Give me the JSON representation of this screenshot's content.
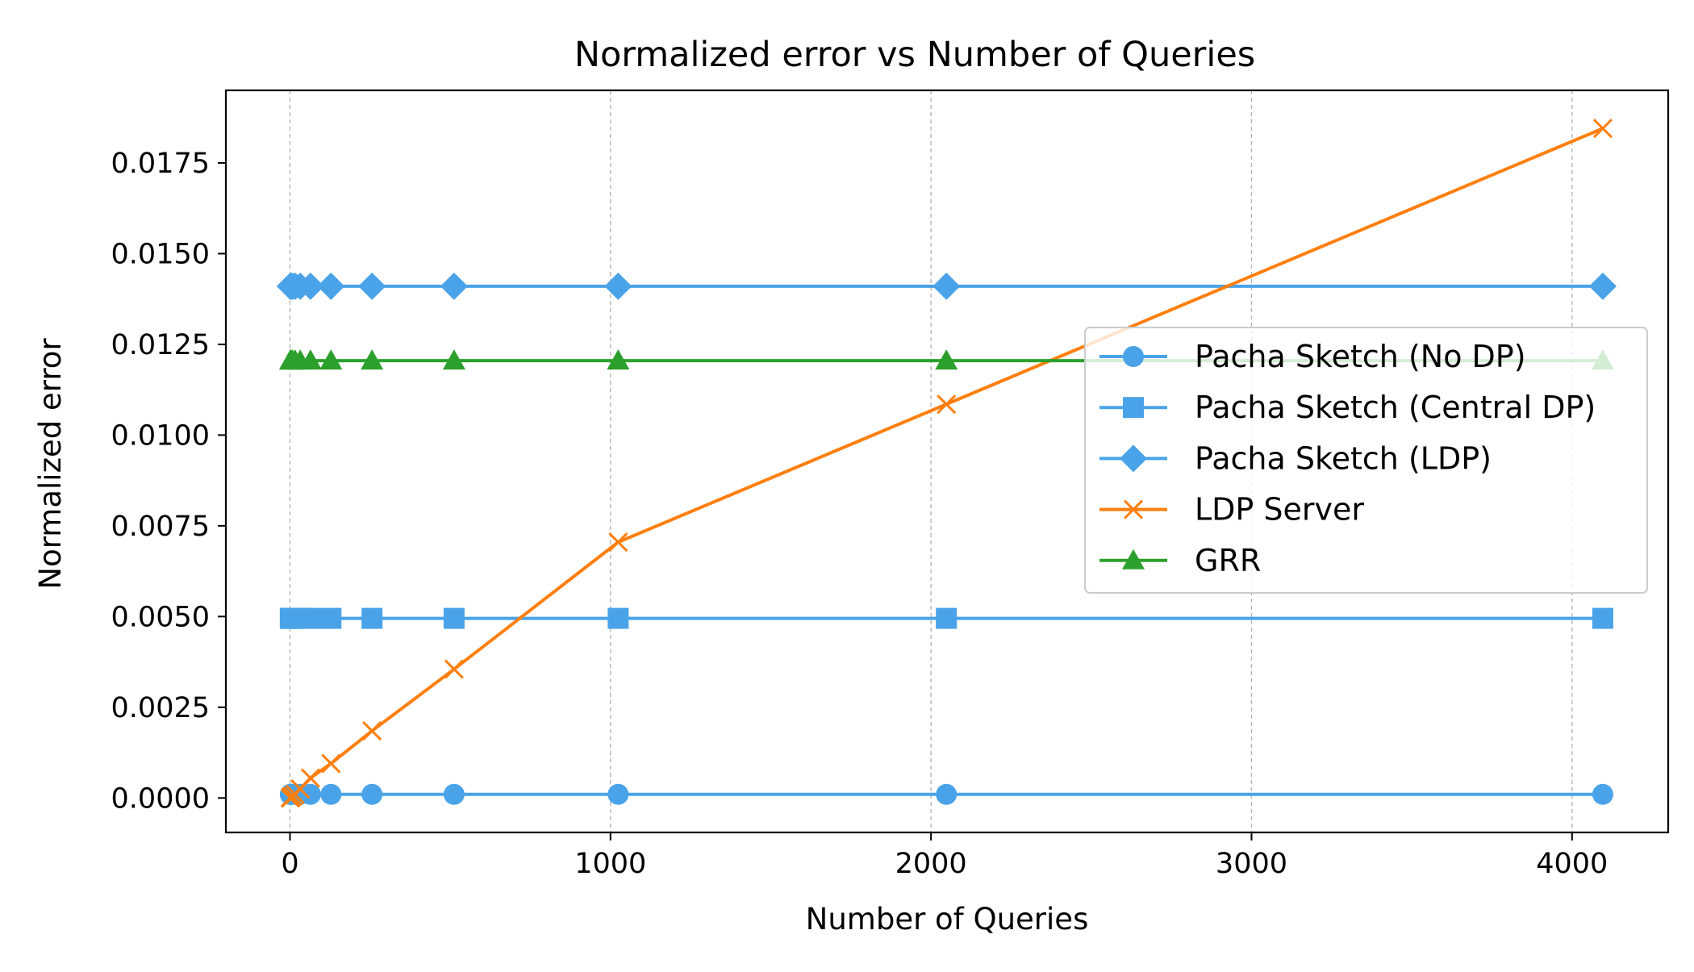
{
  "chart_data": {
    "type": "line",
    "title": "Normalized error vs Number of Queries",
    "xlabel": "Number of Queries",
    "ylabel": "Normalized error",
    "xlim": [
      -200,
      4300
    ],
    "ylim": [
      -0.00095,
      0.0195
    ],
    "x_ticks": [
      0,
      1000,
      2000,
      3000,
      4000
    ],
    "x_tick_labels": [
      "0",
      "1000",
      "2000",
      "3000",
      "4000"
    ],
    "y_ticks": [
      0,
      0.0025,
      0.005,
      0.0075,
      0.01,
      0.0125,
      0.015,
      0.0175
    ],
    "y_tick_labels": [
      "0.0000",
      "0.0025",
      "0.0050",
      "0.0075",
      "0.0100",
      "0.0125",
      "0.0150",
      "0.0175"
    ],
    "grid": "vertical dashed",
    "legend_position": "center-right",
    "x": [
      1,
      2,
      4,
      8,
      16,
      32,
      64,
      128,
      256,
      512,
      1024,
      2048,
      4096
    ],
    "series": [
      {
        "name": "Pacha Sketch (No DP)",
        "color": "#4aa3e8",
        "marker": "circle",
        "values": [
          0.0001,
          0.0001,
          0.0001,
          0.0001,
          0.0001,
          0.0001,
          0.0001,
          0.0001,
          0.0001,
          0.0001,
          0.0001,
          0.0001,
          0.0001
        ]
      },
      {
        "name": "Pacha Sketch (Central DP)",
        "color": "#4aa3e8",
        "marker": "square",
        "values": [
          0.00495,
          0.00495,
          0.00495,
          0.00495,
          0.00495,
          0.00495,
          0.00495,
          0.00495,
          0.00495,
          0.00495,
          0.00495,
          0.00495,
          0.00495
        ]
      },
      {
        "name": "Pacha Sketch (LDP)",
        "color": "#4aa3e8",
        "marker": "diamond",
        "values": [
          0.0141,
          0.0141,
          0.0141,
          0.0141,
          0.0141,
          0.0141,
          0.0141,
          0.0141,
          0.0141,
          0.0141,
          0.0141,
          0.0141,
          0.0141
        ]
      },
      {
        "name": "LDP Server",
        "color": "#ff7f0e",
        "marker": "x",
        "values": [
          0.0,
          1e-05,
          2e-05,
          5e-05,
          0.0001,
          0.00025,
          0.00055,
          0.00095,
          0.00185,
          0.00355,
          0.00705,
          0.01085,
          0.01845
        ]
      },
      {
        "name": "GRR",
        "color": "#2ca02c",
        "marker": "triangle",
        "values": [
          0.01205,
          0.01205,
          0.01205,
          0.01205,
          0.01205,
          0.01205,
          0.01205,
          0.01205,
          0.01205,
          0.01205,
          0.01205,
          0.01205,
          0.01205
        ]
      }
    ]
  }
}
